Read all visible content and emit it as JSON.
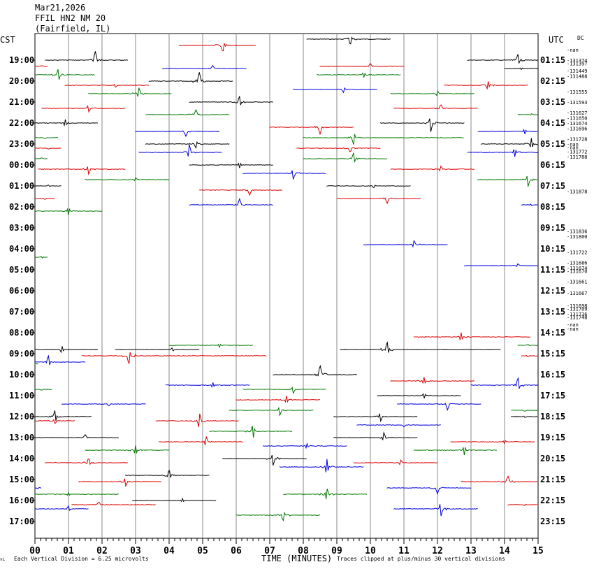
{
  "header": {
    "date": "Mar21,2026",
    "station": "FFIL HN2 NM 20",
    "location": "(Fairfield, IL)"
  },
  "left_zone": "CST",
  "right_zone": "UTC",
  "dc_label": "DC",
  "footer": {
    "corner": "vL",
    "vertical_division": "Each Vertical Division =    6.25 microvolts",
    "time_axis": "TIME (MINUTES)",
    "clip_note": "Traces clipped at plus/minus 30 vertical divisions"
  },
  "colors": {
    "black": "#000000",
    "red": "#dd0000",
    "blue": "#0000dd",
    "green": "#007700",
    "grid": "#888888"
  },
  "chart_data": {
    "type": "seismogram",
    "title": "FFIL HN2 NM 20 (Fairfield, IL)",
    "xlabel": "TIME (MINUTES)",
    "x_ticks": [
      "00",
      "01",
      "02",
      "03",
      "04",
      "05",
      "06",
      "07",
      "08",
      "09",
      "10",
      "11",
      "12",
      "13",
      "14",
      "15"
    ],
    "x_range": [
      0,
      15
    ],
    "rows_per_hour": 4,
    "left_labels": [
      "19:00",
      "20:00",
      "21:00",
      "22:00",
      "23:00",
      "00:00",
      "01:00",
      "02:00",
      "03:00",
      "04:00",
      "05:00",
      "06:00",
      "07:00",
      "08:00",
      "09:00",
      "10:00",
      "11:00",
      "12:00",
      "13:00",
      "14:00",
      "15:00",
      "16:00",
      "17:00"
    ],
    "right_labels": [
      "01:15",
      "02:15",
      "03:15",
      "04:15",
      "05:15",
      "06:15",
      "07:15",
      "08:15",
      "09:15",
      "10:15",
      "11:15",
      "12:15",
      "13:15",
      "14:15",
      "15:15",
      "16:15",
      "17:15",
      "18:15",
      "19:15",
      "20:15",
      "21:15",
      "22:15",
      "23:15"
    ],
    "dc_offsets": [
      {
        "row": 0,
        "text": "-nan"
      },
      {
        "row": 1,
        "text": "-131374"
      },
      {
        "row": 1.3,
        "text": "-131397"
      },
      {
        "row": 2,
        "text": "-131449"
      },
      {
        "row": 2.5,
        "text": "-131488"
      },
      {
        "row": 4,
        "text": "-131555"
      },
      {
        "row": 5,
        "text": "-131593"
      },
      {
        "row": 6,
        "text": "-131627"
      },
      {
        "row": 6.5,
        "text": "-131650"
      },
      {
        "row": 7,
        "text": "-131674"
      },
      {
        "row": 7.5,
        "text": "-131696"
      },
      {
        "row": 8.5,
        "text": "-131728"
      },
      {
        "row": 9,
        "text": "-nan"
      },
      {
        "row": 9.3,
        "text": "-nan"
      },
      {
        "row": 9.7,
        "text": "-131772"
      },
      {
        "row": 10.2,
        "text": "-131788"
      },
      {
        "row": 13.5,
        "text": "-131878"
      },
      {
        "row": 17.3,
        "text": "-131836"
      },
      {
        "row": 17.8,
        "text": "-131800"
      },
      {
        "row": 19.3,
        "text": "-131722"
      },
      {
        "row": 20.3,
        "text": "-131686"
      },
      {
        "row": 20.8,
        "text": "-131674"
      },
      {
        "row": 21.1,
        "text": "-131670"
      },
      {
        "row": 22.1,
        "text": "-131661"
      },
      {
        "row": 23.2,
        "text": "-131667"
      },
      {
        "row": 24.4,
        "text": "-131698"
      },
      {
        "row": 24.7,
        "text": "-131709"
      },
      {
        "row": 25.2,
        "text": "-131736"
      },
      {
        "row": 25.5,
        "text": "-131748"
      },
      {
        "row": 26.2,
        "text": "-nan"
      },
      {
        "row": 26.6,
        "text": "-nan"
      }
    ],
    "traces": [
      {
        "row": 0,
        "color": "black",
        "start": 8.1,
        "end": 10.6,
        "spike": 9.4,
        "amp": 0.6
      },
      {
        "row": 0.3,
        "color": "red",
        "start": 4.3,
        "end": 6.6,
        "spike": 5.6,
        "amp": 0.7
      },
      {
        "row": 1,
        "color": "black",
        "start": 0.3,
        "end": 2.8,
        "spike": 1.8,
        "amp": 0.9
      },
      {
        "row": 1,
        "color": "black",
        "start": 12.9,
        "end": 15.0,
        "spike": 14.4,
        "amp": 0.6
      },
      {
        "row": 1.3,
        "color": "red",
        "start": 0.0,
        "end": 0.4,
        "spike": 0.2,
        "amp": 0.1
      },
      {
        "row": 1.3,
        "color": "red",
        "start": 8.5,
        "end": 11.0,
        "spike": 10.0,
        "amp": 0.3
      },
      {
        "row": 1.4,
        "color": "blue",
        "start": 3.8,
        "end": 6.3,
        "spike": 5.3,
        "amp": 0.3
      },
      {
        "row": 1.4,
        "color": "black",
        "start": 14.0,
        "end": 15.0,
        "spike": 14.5,
        "amp": 0.1
      },
      {
        "row": 1.7,
        "color": "green",
        "start": 0.0,
        "end": 1.8,
        "spike": 0.7,
        "amp": 0.7
      },
      {
        "row": 1.7,
        "color": "green",
        "start": 8.4,
        "end": 10.9,
        "spike": 9.8,
        "amp": 0.3
      },
      {
        "row": 2.0,
        "color": "black",
        "start": 3.4,
        "end": 5.9,
        "spike": 4.9,
        "amp": 0.9
      },
      {
        "row": 2.2,
        "color": "red",
        "start": 0.9,
        "end": 3.4,
        "spike": 2.4,
        "amp": 0.2
      },
      {
        "row": 2.2,
        "color": "red",
        "start": 12.2,
        "end": 14.7,
        "spike": 13.5,
        "amp": 0.5
      },
      {
        "row": 2.4,
        "color": "blue",
        "start": 7.7,
        "end": 10.2,
        "spike": 9.2,
        "amp": 0.3
      },
      {
        "row": 2.6,
        "color": "green",
        "start": 1.6,
        "end": 4.1,
        "spike": 3.1,
        "amp": 0.6
      },
      {
        "row": 2.6,
        "color": "green",
        "start": 10.6,
        "end": 13.1,
        "spike": 12.0,
        "amp": 0.3
      },
      {
        "row": 3.0,
        "color": "black",
        "start": 4.6,
        "end": 7.1,
        "spike": 6.1,
        "amp": 0.6
      },
      {
        "row": 3.3,
        "color": "red",
        "start": 0.2,
        "end": 2.7,
        "spike": 1.6,
        "amp": 0.4
      },
      {
        "row": 3.3,
        "color": "red",
        "start": 10.7,
        "end": 13.2,
        "spike": 12.1,
        "amp": 0.4
      },
      {
        "row": 3.6,
        "color": "green",
        "start": 3.3,
        "end": 5.8,
        "spike": 4.8,
        "amp": 0.5
      },
      {
        "row": 3.6,
        "color": "green",
        "start": 14.4,
        "end": 15.0,
        "spike": 14.8,
        "amp": 0.1
      },
      {
        "row": 4.0,
        "color": "black",
        "start": 0.0,
        "end": 1.9,
        "spike": 0.9,
        "amp": 0.4
      },
      {
        "row": 4.0,
        "color": "black",
        "start": 10.3,
        "end": 12.8,
        "spike": 11.8,
        "amp": 0.9
      },
      {
        "row": 4.2,
        "color": "red",
        "start": 7.0,
        "end": 9.5,
        "spike": 8.5,
        "amp": 0.7
      },
      {
        "row": 4.4,
        "color": "blue",
        "start": 3.0,
        "end": 5.5,
        "spike": 4.5,
        "amp": 0.5
      },
      {
        "row": 4.4,
        "color": "blue",
        "start": 13.2,
        "end": 15.0,
        "spike": 14.6,
        "amp": 0.3
      },
      {
        "row": 4.7,
        "color": "green",
        "start": 0.0,
        "end": 0.7,
        "spike": 0.3,
        "amp": 0.1
      },
      {
        "row": 4.7,
        "color": "green",
        "start": 8.0,
        "end": 12.8,
        "spike": 9.5,
        "amp": 0.7
      },
      {
        "row": 5.0,
        "color": "black",
        "start": 3.3,
        "end": 5.8,
        "spike": 4.8,
        "amp": 0.4
      },
      {
        "row": 5.0,
        "color": "black",
        "start": 13.3,
        "end": 15.0,
        "spike": 14.8,
        "amp": 0.6
      },
      {
        "row": 5.2,
        "color": "red",
        "start": 0.0,
        "end": 0.8,
        "spike": 0.4,
        "amp": 0.1
      },
      {
        "row": 5.2,
        "color": "red",
        "start": 7.8,
        "end": 10.3,
        "spike": 9.4,
        "amp": 0.4
      },
      {
        "row": 5.4,
        "color": "blue",
        "start": 3.1,
        "end": 5.6,
        "spike": 4.6,
        "amp": 0.8
      },
      {
        "row": 5.4,
        "color": "blue",
        "start": 12.9,
        "end": 15.0,
        "spike": 14.3,
        "amp": 0.5
      },
      {
        "row": 5.7,
        "color": "green",
        "start": 0.0,
        "end": 0.4,
        "spike": 0.2,
        "amp": 0.1
      },
      {
        "row": 5.7,
        "color": "green",
        "start": 8.0,
        "end": 10.5,
        "spike": 9.5,
        "amp": 0.6
      },
      {
        "row": 6.0,
        "color": "black",
        "start": 4.6,
        "end": 7.1,
        "spike": 6.1,
        "amp": 0.3
      },
      {
        "row": 6.2,
        "color": "red",
        "start": 0.1,
        "end": 2.7,
        "spike": 1.6,
        "amp": 0.5
      },
      {
        "row": 6.2,
        "color": "red",
        "start": 10.6,
        "end": 13.1,
        "spike": 12.1,
        "amp": 0.3
      },
      {
        "row": 6.4,
        "color": "blue",
        "start": 6.2,
        "end": 8.7,
        "spike": 7.7,
        "amp": 0.6
      },
      {
        "row": 6.7,
        "color": "green",
        "start": 1.5,
        "end": 4.0,
        "spike": 3.0,
        "amp": 0.2
      },
      {
        "row": 6.7,
        "color": "green",
        "start": 13.2,
        "end": 15.0,
        "spike": 14.7,
        "amp": 0.7
      },
      {
        "row": 7.0,
        "color": "black",
        "start": 0.0,
        "end": 0.8,
        "spike": 0.4,
        "amp": 0.1
      },
      {
        "row": 7.0,
        "color": "black",
        "start": 8.7,
        "end": 11.2,
        "spike": 10.1,
        "amp": 0.2
      },
      {
        "row": 7.2,
        "color": "red",
        "start": 4.9,
        "end": 7.4,
        "spike": 6.4,
        "amp": 0.5
      },
      {
        "row": 7.6,
        "color": "red",
        "start": 0.0,
        "end": 0.6,
        "spike": 0.3,
        "amp": 0.1
      },
      {
        "row": 7.6,
        "color": "red",
        "start": 9.0,
        "end": 11.5,
        "spike": 10.5,
        "amp": 0.5
      },
      {
        "row": 7.9,
        "color": "blue",
        "start": 4.6,
        "end": 7.1,
        "spike": 6.1,
        "amp": 0.6
      },
      {
        "row": 7.9,
        "color": "blue",
        "start": 14.5,
        "end": 15.0,
        "spike": 14.8,
        "amp": 0.1
      },
      {
        "row": 8.2,
        "color": "green",
        "start": 0.0,
        "end": 2.0,
        "spike": 1.0,
        "amp": 0.4
      },
      {
        "row": 9.8,
        "color": "blue",
        "start": 9.8,
        "end": 12.3,
        "spike": 11.3,
        "amp": 0.4
      },
      {
        "row": 10.4,
        "color": "green",
        "start": 0.0,
        "end": 0.4,
        "spike": 0.2,
        "amp": 0.1
      },
      {
        "row": 10.8,
        "color": "blue",
        "start": 12.8,
        "end": 15.0,
        "spike": 14.4,
        "amp": 0.2
      },
      {
        "row": 14.2,
        "color": "red",
        "start": 11.3,
        "end": 14.8,
        "spike": 12.7,
        "amp": 0.5
      },
      {
        "row": 14.6,
        "color": "green",
        "start": 4.0,
        "end": 6.5,
        "spike": 5.5,
        "amp": 0.2
      },
      {
        "row": 14.6,
        "color": "green",
        "start": 14.4,
        "end": 15.0,
        "spike": 14.7,
        "amp": 0.1
      },
      {
        "row": 14.8,
        "color": "black",
        "start": 0.0,
        "end": 1.9,
        "spike": 0.8,
        "amp": 0.4
      },
      {
        "row": 14.8,
        "color": "black",
        "start": 2.4,
        "end": 4.9,
        "spike": 4.1,
        "amp": 0.2
      },
      {
        "row": 14.8,
        "color": "black",
        "start": 9.1,
        "end": 13.9,
        "spike": 10.5,
        "amp": 0.8
      },
      {
        "row": 15.1,
        "color": "red",
        "start": 1.4,
        "end": 6.9,
        "spike": 2.8,
        "amp": 0.9
      },
      {
        "row": 15.1,
        "color": "red",
        "start": 14.5,
        "end": 15.0,
        "spike": 14.7,
        "amp": 0.1
      },
      {
        "row": 15.4,
        "color": "blue",
        "start": 0.0,
        "end": 1.5,
        "spike": 0.4,
        "amp": 0.7
      },
      {
        "row": 16.0,
        "color": "black",
        "start": 7.1,
        "end": 9.6,
        "spike": 8.5,
        "amp": 1.0
      },
      {
        "row": 16.3,
        "color": "red",
        "start": 10.6,
        "end": 13.1,
        "spike": 11.6,
        "amp": 0.4
      },
      {
        "row": 16.5,
        "color": "blue",
        "start": 3.9,
        "end": 6.4,
        "spike": 5.3,
        "amp": 0.3
      },
      {
        "row": 16.5,
        "color": "blue",
        "start": 13.0,
        "end": 15.0,
        "spike": 14.4,
        "amp": 0.8
      },
      {
        "row": 16.7,
        "color": "green",
        "start": 0.0,
        "end": 0.5,
        "spike": 0.2,
        "amp": 0.1
      },
      {
        "row": 16.7,
        "color": "green",
        "start": 6.2,
        "end": 8.7,
        "spike": 7.7,
        "amp": 0.4
      },
      {
        "row": 17.0,
        "color": "black",
        "start": 10.2,
        "end": 12.7,
        "spike": 11.6,
        "amp": 0.3
      },
      {
        "row": 17.2,
        "color": "red",
        "start": 6.0,
        "end": 8.5,
        "spike": 7.5,
        "amp": 0.4
      },
      {
        "row": 17.4,
        "color": "blue",
        "start": 0.8,
        "end": 3.3,
        "spike": 2.2,
        "amp": 0.2
      },
      {
        "row": 17.4,
        "color": "blue",
        "start": 10.8,
        "end": 13.3,
        "spike": 12.3,
        "amp": 0.6
      },
      {
        "row": 17.7,
        "color": "green",
        "start": 5.8,
        "end": 8.3,
        "spike": 7.3,
        "amp": 0.5
      },
      {
        "row": 17.7,
        "color": "green",
        "start": 14.2,
        "end": 15.0,
        "spike": 14.6,
        "amp": 0.1
      },
      {
        "row": 18.0,
        "color": "black",
        "start": 0.0,
        "end": 1.7,
        "spike": 0.6,
        "amp": 0.7
      },
      {
        "row": 18.0,
        "color": "black",
        "start": 8.9,
        "end": 11.4,
        "spike": 10.3,
        "amp": 0.5
      },
      {
        "row": 18.0,
        "color": "black",
        "start": 14.2,
        "end": 15.0,
        "spike": 14.6,
        "amp": 0.1
      },
      {
        "row": 18.2,
        "color": "red",
        "start": 0.0,
        "end": 1.2,
        "spike": 0.6,
        "amp": 0.3
      },
      {
        "row": 18.2,
        "color": "red",
        "start": 3.6,
        "end": 6.1,
        "spike": 4.9,
        "amp": 0.9
      },
      {
        "row": 18.4,
        "color": "blue",
        "start": 9.6,
        "end": 12.1,
        "spike": 11.0,
        "amp": 0.2
      },
      {
        "row": 18.7,
        "color": "green",
        "start": 5.2,
        "end": 7.7,
        "spike": 6.5,
        "amp": 0.8
      },
      {
        "row": 19.0,
        "color": "black",
        "start": 0.0,
        "end": 2.5,
        "spike": 1.5,
        "amp": 0.3
      },
      {
        "row": 19.0,
        "color": "black",
        "start": 8.9,
        "end": 11.4,
        "spike": 10.4,
        "amp": 0.5
      },
      {
        "row": 19.2,
        "color": "red",
        "start": 3.7,
        "end": 6.2,
        "spike": 5.1,
        "amp": 0.6
      },
      {
        "row": 19.2,
        "color": "red",
        "start": 12.4,
        "end": 14.9,
        "spike": 14.0,
        "amp": 0.2
      },
      {
        "row": 19.4,
        "color": "blue",
        "start": 6.8,
        "end": 9.3,
        "spike": 8.1,
        "amp": 0.3
      },
      {
        "row": 19.6,
        "color": "green",
        "start": 1.5,
        "end": 4.0,
        "spike": 3.0,
        "amp": 0.5
      },
      {
        "row": 19.6,
        "color": "green",
        "start": 11.3,
        "end": 13.8,
        "spike": 12.8,
        "amp": 0.5
      },
      {
        "row": 20.0,
        "color": "black",
        "start": 5.6,
        "end": 8.1,
        "spike": 7.1,
        "amp": 0.7
      },
      {
        "row": 20.2,
        "color": "red",
        "start": 0.3,
        "end": 2.8,
        "spike": 1.6,
        "amp": 0.5
      },
      {
        "row": 20.2,
        "color": "red",
        "start": 9.5,
        "end": 12.0,
        "spike": 10.9,
        "amp": 0.3
      },
      {
        "row": 20.4,
        "color": "blue",
        "start": 7.3,
        "end": 9.8,
        "spike": 8.7,
        "amp": 0.9
      },
      {
        "row": 20.8,
        "color": "black",
        "start": 2.7,
        "end": 5.2,
        "spike": 4.0,
        "amp": 0.6
      },
      {
        "row": 21.1,
        "color": "red",
        "start": 1.3,
        "end": 3.8,
        "spike": 2.7,
        "amp": 0.5
      },
      {
        "row": 21.1,
        "color": "red",
        "start": 12.7,
        "end": 15.0,
        "spike": 14.1,
        "amp": 0.6
      },
      {
        "row": 21.4,
        "color": "blue",
        "start": 0.0,
        "end": 0.2,
        "spike": 0.1,
        "amp": 0.1
      },
      {
        "row": 21.4,
        "color": "blue",
        "start": 10.5,
        "end": 13.0,
        "spike": 12.0,
        "amp": 0.6
      },
      {
        "row": 21.7,
        "color": "green",
        "start": 0.0,
        "end": 2.5,
        "spike": 1.0,
        "amp": 0.2
      },
      {
        "row": 21.7,
        "color": "green",
        "start": 7.4,
        "end": 9.9,
        "spike": 8.7,
        "amp": 0.7
      },
      {
        "row": 22.0,
        "color": "black",
        "start": 2.9,
        "end": 5.4,
        "spike": 4.4,
        "amp": 0.2
      },
      {
        "row": 22.2,
        "color": "red",
        "start": 1.1,
        "end": 3.6,
        "spike": 1.9,
        "amp": 0.3
      },
      {
        "row": 22.2,
        "color": "red",
        "start": 14.1,
        "end": 15.0,
        "spike": 14.6,
        "amp": 0.1
      },
      {
        "row": 22.4,
        "color": "blue",
        "start": 0.0,
        "end": 1.6,
        "spike": 1.0,
        "amp": 0.3
      },
      {
        "row": 22.4,
        "color": "blue",
        "start": 10.7,
        "end": 13.2,
        "spike": 12.1,
        "amp": 0.8
      },
      {
        "row": 22.7,
        "color": "green",
        "start": 6.0,
        "end": 8.5,
        "spike": 7.4,
        "amp": 0.6
      },
      {
        "row": 15.5,
        "color": "green",
        "start": 0.0,
        "end": 0.1,
        "spike": 0.05,
        "amp": 0.05
      }
    ]
  }
}
